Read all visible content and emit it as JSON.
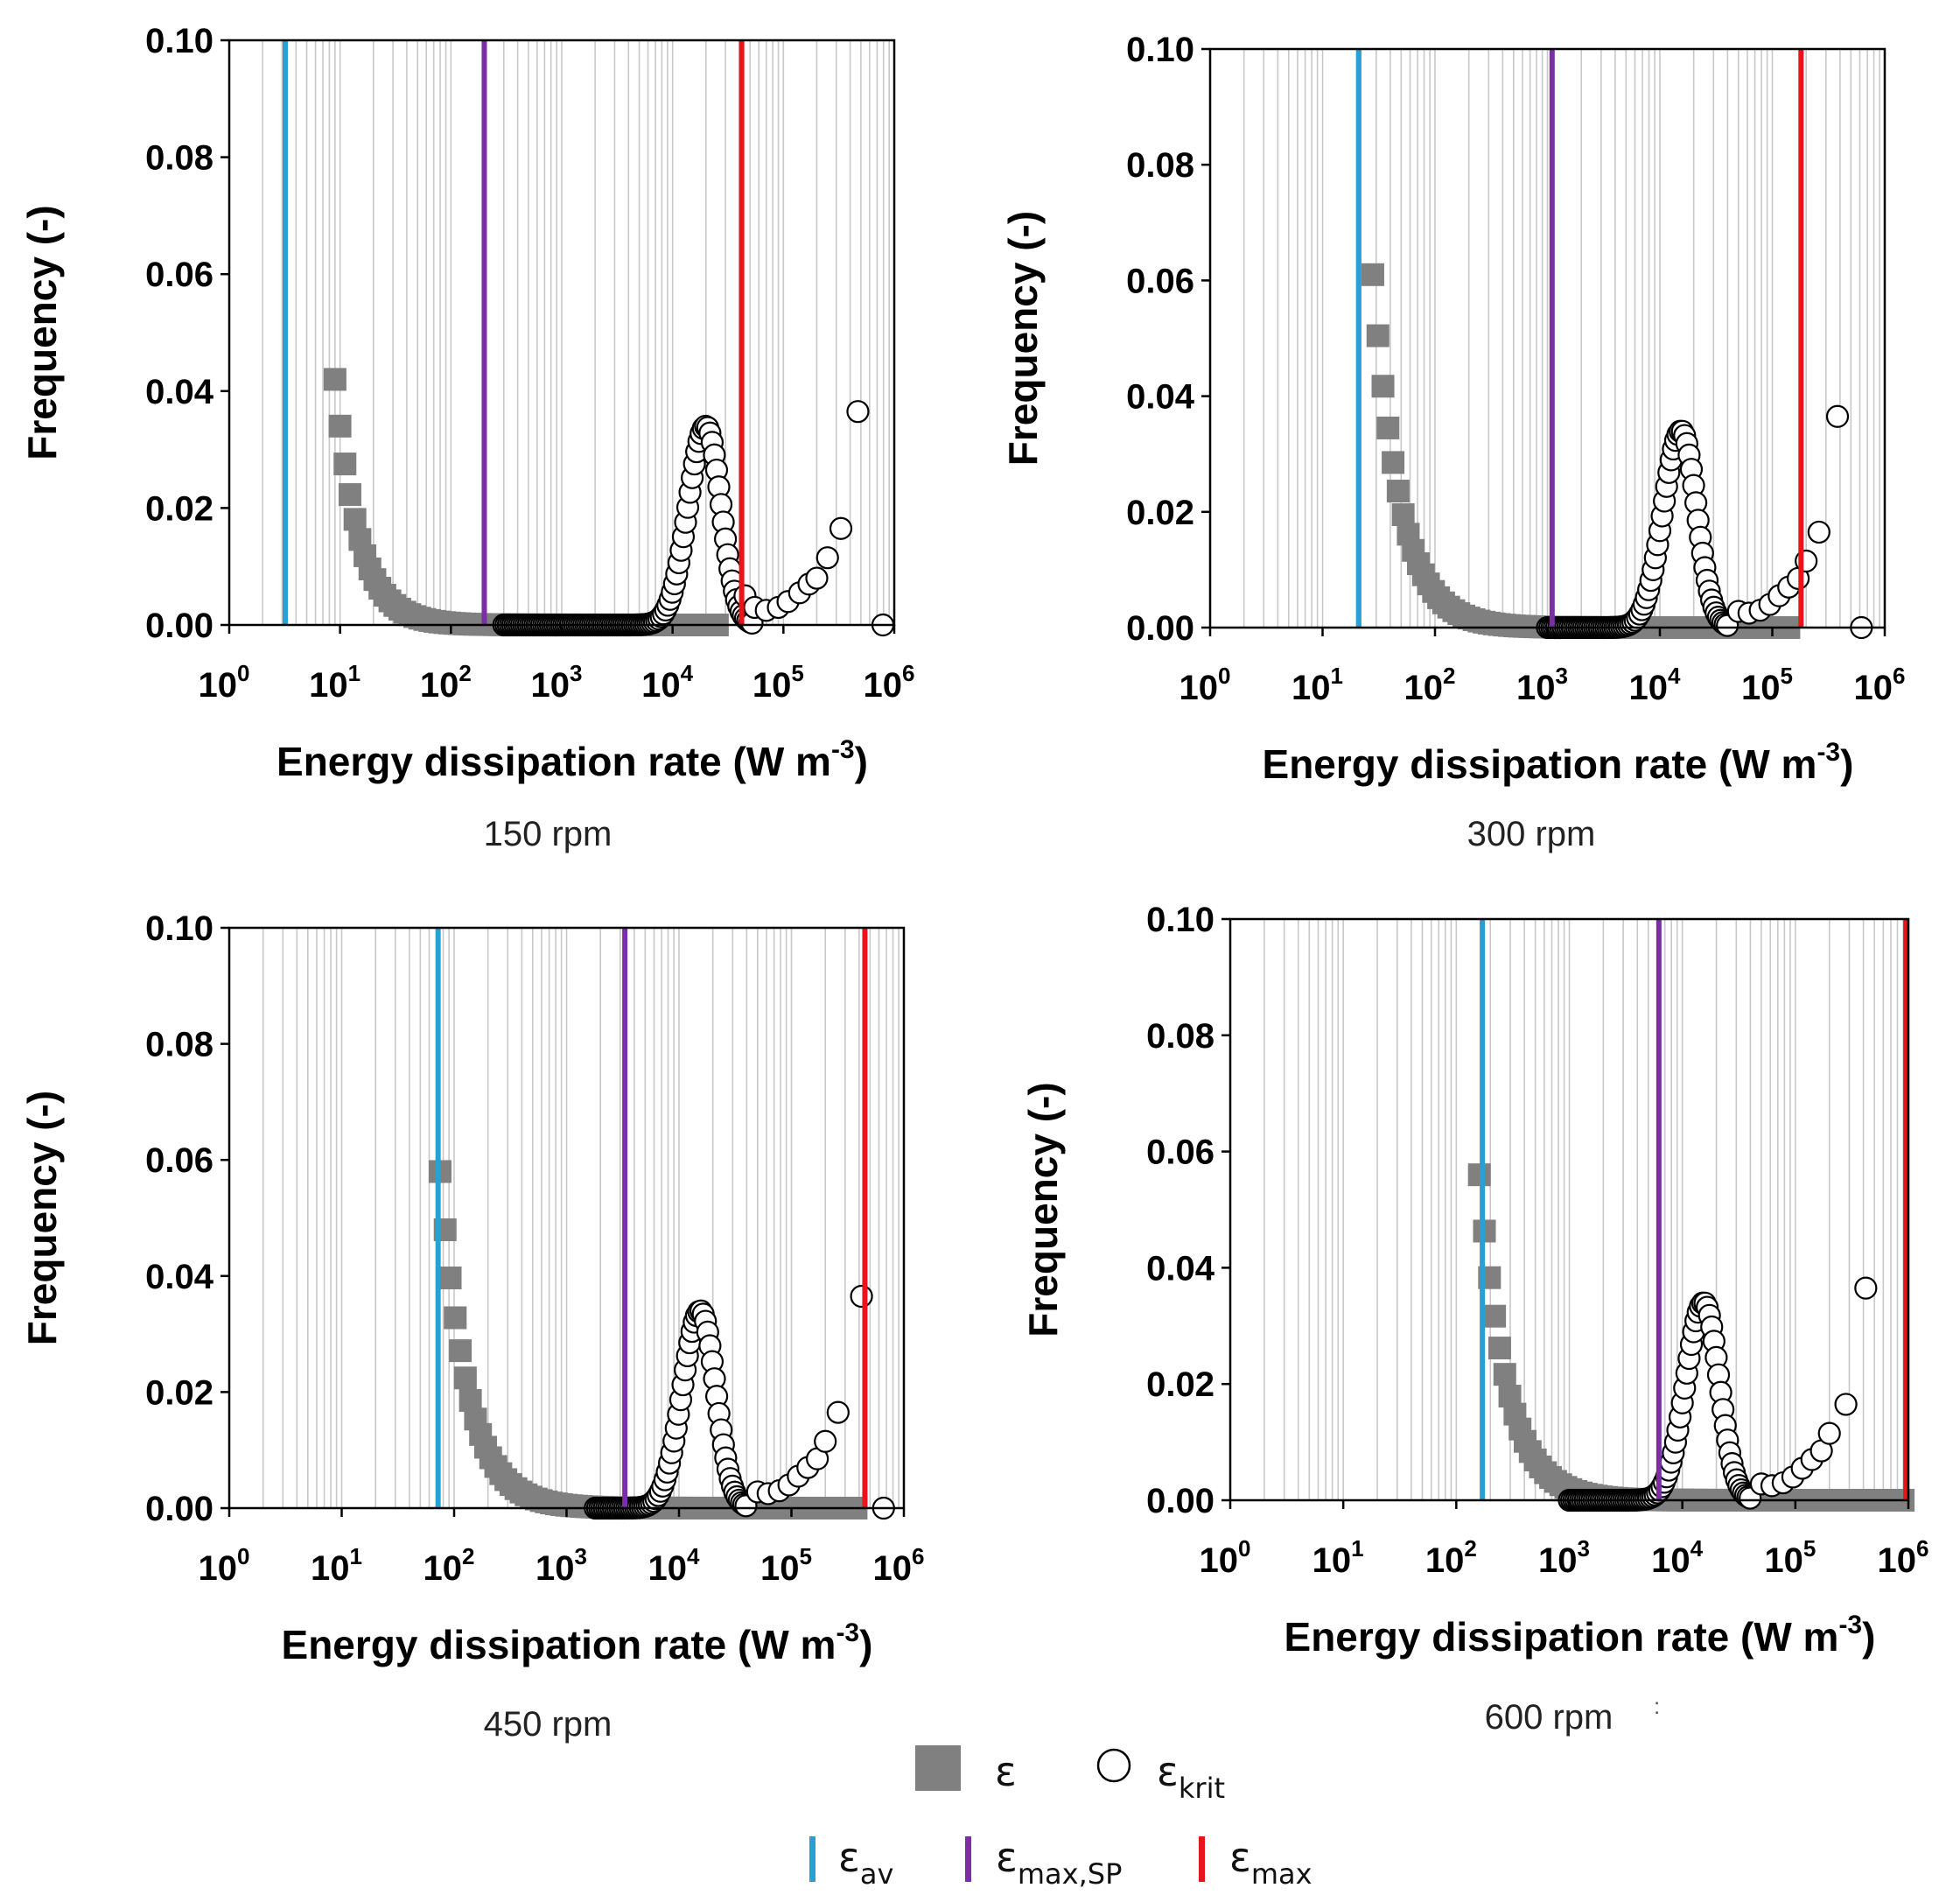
{
  "figure": {
    "legend": {
      "items": [
        {
          "symbol": "gray-square",
          "label": "ε",
          "sub": ""
        },
        {
          "symbol": "open-circle",
          "label": "ε",
          "sub": "krit"
        },
        {
          "symbol": "blue-line",
          "label": "ε",
          "sub": "av",
          "color": "#2a9fd6"
        },
        {
          "symbol": "purple-line",
          "label": "ε",
          "sub": "max,SP",
          "color": "#7b2fa6"
        },
        {
          "symbol": "red-line",
          "label": "ε",
          "sub": "max",
          "color": "#e8141a"
        }
      ]
    },
    "stray_mark": ":"
  },
  "colors": {
    "eps_av": "#2a9fd6",
    "eps_max_sp": "#7b2fa6",
    "eps_max": "#e8141a",
    "square": "#808080",
    "circle": "#000000"
  },
  "chart_data": [
    {
      "type": "scatter",
      "caption": "150 rpm",
      "xlabel": "Energy dissipation rate (W m",
      "xlabel_sup": "-3",
      "xlabel_close": ")",
      "ylabel": "Frequency (-)",
      "xscale": "log",
      "xlim": [
        1,
        1000000
      ],
      "ylim": [
        0,
        0.1
      ],
      "yticks": [
        "0.00",
        "0.02",
        "0.04",
        "0.06",
        "0.08",
        "0.10"
      ],
      "xticks": [
        {
          "base": "10",
          "exp": "0"
        },
        {
          "base": "10",
          "exp": "1"
        },
        {
          "base": "10",
          "exp": "2"
        },
        {
          "base": "10",
          "exp": "3"
        },
        {
          "base": "10",
          "exp": "4"
        },
        {
          "base": "10",
          "exp": "5"
        },
        {
          "base": "10",
          "exp": "6"
        }
      ],
      "grid": "vertical minor",
      "vlines": {
        "eps_av": 3.2,
        "eps_max_sp": 200,
        "eps_max": 42000
      },
      "squares": {
        "x_min": 9,
        "x_max": 28000,
        "peak": 0.042,
        "decay": 0.27
      },
      "circles": {
        "x_min": 300,
        "x_max": 180000,
        "peak_x": 20000,
        "peak_y": 0.034,
        "sigma": 0.16
      },
      "circle_extra": [
        [
          45000,
          0.005
        ],
        [
          55000,
          0.003
        ],
        [
          70000,
          0.0025
        ],
        [
          90000,
          0.003
        ],
        [
          110000,
          0.004
        ],
        [
          140000,
          0.0055
        ],
        [
          170000,
          0.007
        ],
        [
          200000,
          0.008
        ],
        [
          250000,
          0.0115
        ],
        [
          330000,
          0.0165
        ],
        [
          470000,
          0.0365
        ],
        [
          790000,
          0.0
        ]
      ]
    },
    {
      "type": "scatter",
      "caption": "300 rpm",
      "xlabel": "Energy dissipation rate (W m",
      "xlabel_sup": "-3",
      "xlabel_close": ")",
      "ylabel": "Frequency (-)",
      "xscale": "log",
      "xlim": [
        1,
        1000000
      ],
      "ylim": [
        0,
        0.1
      ],
      "yticks": [
        "0.00",
        "0.02",
        "0.04",
        "0.06",
        "0.08",
        "0.10"
      ],
      "xticks": [
        {
          "base": "10",
          "exp": "0"
        },
        {
          "base": "10",
          "exp": "1"
        },
        {
          "base": "10",
          "exp": "2"
        },
        {
          "base": "10",
          "exp": "3"
        },
        {
          "base": "10",
          "exp": "4"
        },
        {
          "base": "10",
          "exp": "5"
        },
        {
          "base": "10",
          "exp": "6"
        }
      ],
      "grid": "vertical minor",
      "vlines": {
        "eps_av": 21,
        "eps_max_sp": 1100,
        "eps_max": 180000
      },
      "squares": {
        "x_min": 28,
        "x_max": 150000,
        "peak": 0.061,
        "decay": 0.3
      },
      "circles": {
        "x_min": 1000,
        "x_max": 220000,
        "peak_x": 15500,
        "peak_y": 0.034,
        "sigma": 0.16
      },
      "circle_extra": [
        [
          50000,
          0.0028
        ],
        [
          62000,
          0.0025
        ],
        [
          78000,
          0.003
        ],
        [
          95000,
          0.004
        ],
        [
          115000,
          0.0055
        ],
        [
          140000,
          0.007
        ],
        [
          170000,
          0.0085
        ],
        [
          200000,
          0.0115
        ],
        [
          260000,
          0.0165
        ],
        [
          380000,
          0.0365
        ],
        [
          620000,
          0.0
        ]
      ]
    },
    {
      "type": "scatter",
      "caption": "450 rpm",
      "xlabel": "Energy dissipation rate (W m",
      "xlabel_sup": "-3",
      "xlabel_close": ")",
      "ylabel": "Frequency (-)",
      "xscale": "log",
      "xlim": [
        1,
        1000000
      ],
      "ylim": [
        0,
        0.1
      ],
      "yticks": [
        "0.00",
        "0.02",
        "0.04",
        "0.06",
        "0.08",
        "0.10"
      ],
      "xticks": [
        {
          "base": "10",
          "exp": "0"
        },
        {
          "base": "10",
          "exp": "1"
        },
        {
          "base": "10",
          "exp": "2"
        },
        {
          "base": "10",
          "exp": "3"
        },
        {
          "base": "10",
          "exp": "4"
        },
        {
          "base": "10",
          "exp": "5"
        },
        {
          "base": "10",
          "exp": "6"
        }
      ],
      "grid": "vertical minor",
      "vlines": {
        "eps_av": 72,
        "eps_max_sp": 3300,
        "eps_max": 450000
      },
      "squares": {
        "x_min": 75,
        "x_max": 420000,
        "peak": 0.058,
        "decay": 0.3
      },
      "circles": {
        "x_min": 1800,
        "x_max": 240000,
        "peak_x": 15500,
        "peak_y": 0.034,
        "sigma": 0.16
      },
      "circle_extra": [
        [
          50000,
          0.0028
        ],
        [
          62000,
          0.0025
        ],
        [
          78000,
          0.003
        ],
        [
          95000,
          0.004
        ],
        [
          115000,
          0.0055
        ],
        [
          140000,
          0.007
        ],
        [
          170000,
          0.0085
        ],
        [
          200000,
          0.0115
        ],
        [
          260000,
          0.0165
        ],
        [
          420000,
          0.0365
        ],
        [
          660000,
          0.0
        ]
      ]
    },
    {
      "type": "scatter",
      "caption": "600 rpm",
      "xlabel": "Energy dissipation rate (W m",
      "xlabel_sup": "-3",
      "xlabel_close": ")",
      "ylabel": "Frequency (-)",
      "xscale": "log",
      "xlim": [
        1,
        1000000
      ],
      "ylim": [
        0,
        0.1
      ],
      "yticks": [
        "0.00",
        "0.02",
        "0.04",
        "0.06",
        "0.08",
        "0.10"
      ],
      "xticks": [
        {
          "base": "10",
          "exp": "0"
        },
        {
          "base": "10",
          "exp": "1"
        },
        {
          "base": "10",
          "exp": "2"
        },
        {
          "base": "10",
          "exp": "3"
        },
        {
          "base": "10",
          "exp": "4"
        },
        {
          "base": "10",
          "exp": "5"
        },
        {
          "base": "10",
          "exp": "6"
        }
      ],
      "grid": "vertical minor",
      "vlines": {
        "eps_av": 170,
        "eps_max_sp": 6200,
        "eps_max": 950000
      },
      "squares": {
        "x_min": 160,
        "x_max": 950000,
        "peak": 0.056,
        "decay": 0.3
      },
      "circles": {
        "x_min": 1000,
        "x_max": 230000,
        "peak_x": 15500,
        "peak_y": 0.034,
        "sigma": 0.16
      },
      "circle_extra": [
        [
          50000,
          0.0028
        ],
        [
          62000,
          0.0025
        ],
        [
          78000,
          0.003
        ],
        [
          95000,
          0.004
        ],
        [
          115000,
          0.0055
        ],
        [
          140000,
          0.007
        ],
        [
          170000,
          0.0085
        ],
        [
          200000,
          0.0115
        ],
        [
          280000,
          0.0165
        ],
        [
          420000,
          0.0365
        ]
      ]
    }
  ]
}
